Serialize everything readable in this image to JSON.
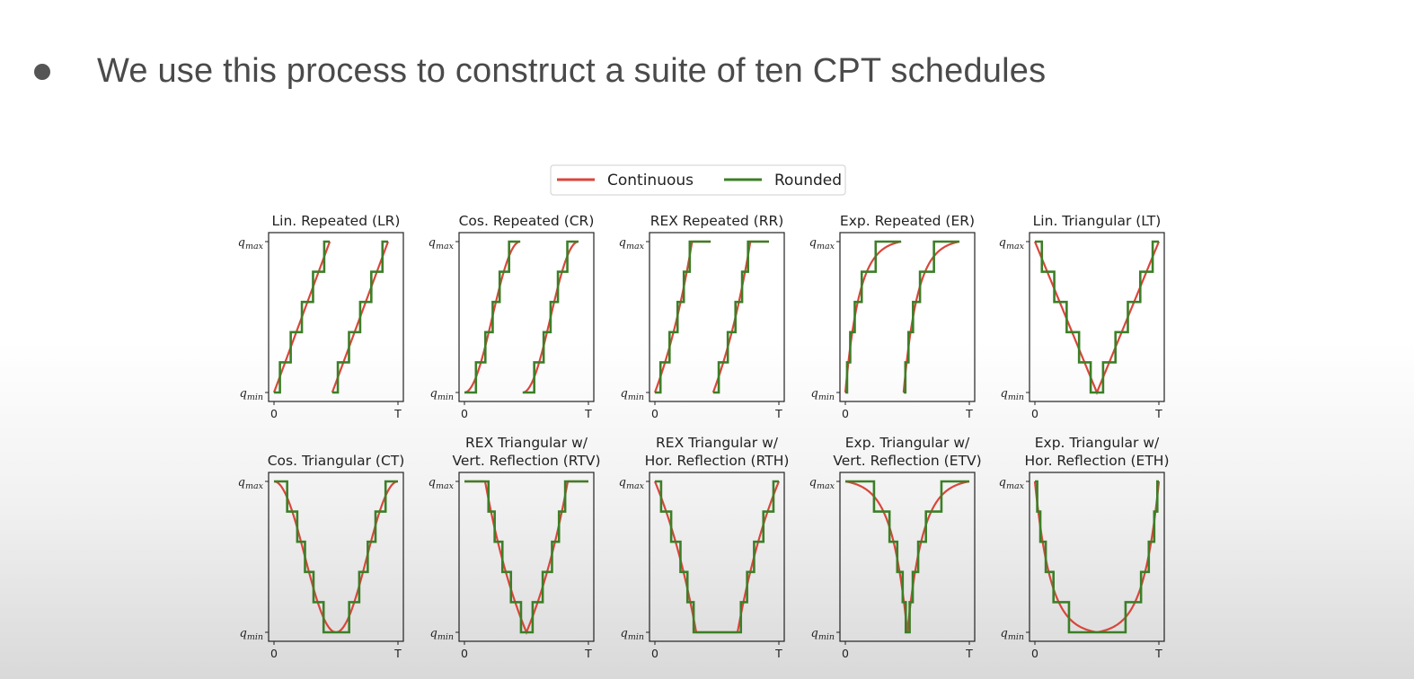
{
  "slide": {
    "bullet_text": "We use this process to construct a suite of ten CPT schedules"
  },
  "chart_data": {
    "type": "line",
    "legend": {
      "entries": [
        "Continuous",
        "Rounded"
      ],
      "colors": [
        "#d9463b",
        "#3c7f27"
      ],
      "placement": "top-center"
    },
    "x_axis": {
      "ticks": [
        "0",
        "T"
      ]
    },
    "y_axis": {
      "ticks_top": "qmax",
      "ticks_bottom": "qmin",
      "tick_sub_max": "max",
      "tick_sub_min": "min",
      "tick_main": "q"
    },
    "quantization_levels": 6,
    "panels": [
      {
        "id": "LR",
        "title_lines": [
          "Lin. Repeated (LR)"
        ],
        "shape": "linear",
        "mode": "repeated",
        "cycles": 2
      },
      {
        "id": "CR",
        "title_lines": [
          "Cos. Repeated (CR)"
        ],
        "shape": "cosine",
        "mode": "repeated",
        "cycles": 2
      },
      {
        "id": "RR",
        "title_lines": [
          "REX Repeated (RR)"
        ],
        "shape": "rex",
        "mode": "repeated",
        "cycles": 2
      },
      {
        "id": "ER",
        "title_lines": [
          "Exp. Repeated (ER)"
        ],
        "shape": "exp",
        "mode": "repeated",
        "cycles": 2
      },
      {
        "id": "LT",
        "title_lines": [
          "Lin. Triangular (LT)"
        ],
        "shape": "linear",
        "mode": "triangular_vertical",
        "cycles": 1
      },
      {
        "id": "CT",
        "title_lines": [
          "Cos. Triangular (CT)"
        ],
        "shape": "cosine",
        "mode": "triangular_vertical",
        "cycles": 1
      },
      {
        "id": "RTV",
        "title_lines": [
          "REX Triangular w/",
          "Vert. Reflection (RTV)"
        ],
        "shape": "rex",
        "mode": "triangular_vertical",
        "cycles": 1
      },
      {
        "id": "RTH",
        "title_lines": [
          "REX Triangular w/",
          "Hor. Reflection (RTH)"
        ],
        "shape": "rex",
        "mode": "triangular_horizontal",
        "cycles": 1
      },
      {
        "id": "ETV",
        "title_lines": [
          "Exp. Triangular w/",
          "Vert. Reflection (ETV)"
        ],
        "shape": "exp",
        "mode": "triangular_vertical",
        "cycles": 1
      },
      {
        "id": "ETH",
        "title_lines": [
          "Exp. Triangular w/",
          "Hor. Reflection (ETH)"
        ],
        "shape": "exp",
        "mode": "triangular_horizontal",
        "cycles": 1
      }
    ]
  }
}
